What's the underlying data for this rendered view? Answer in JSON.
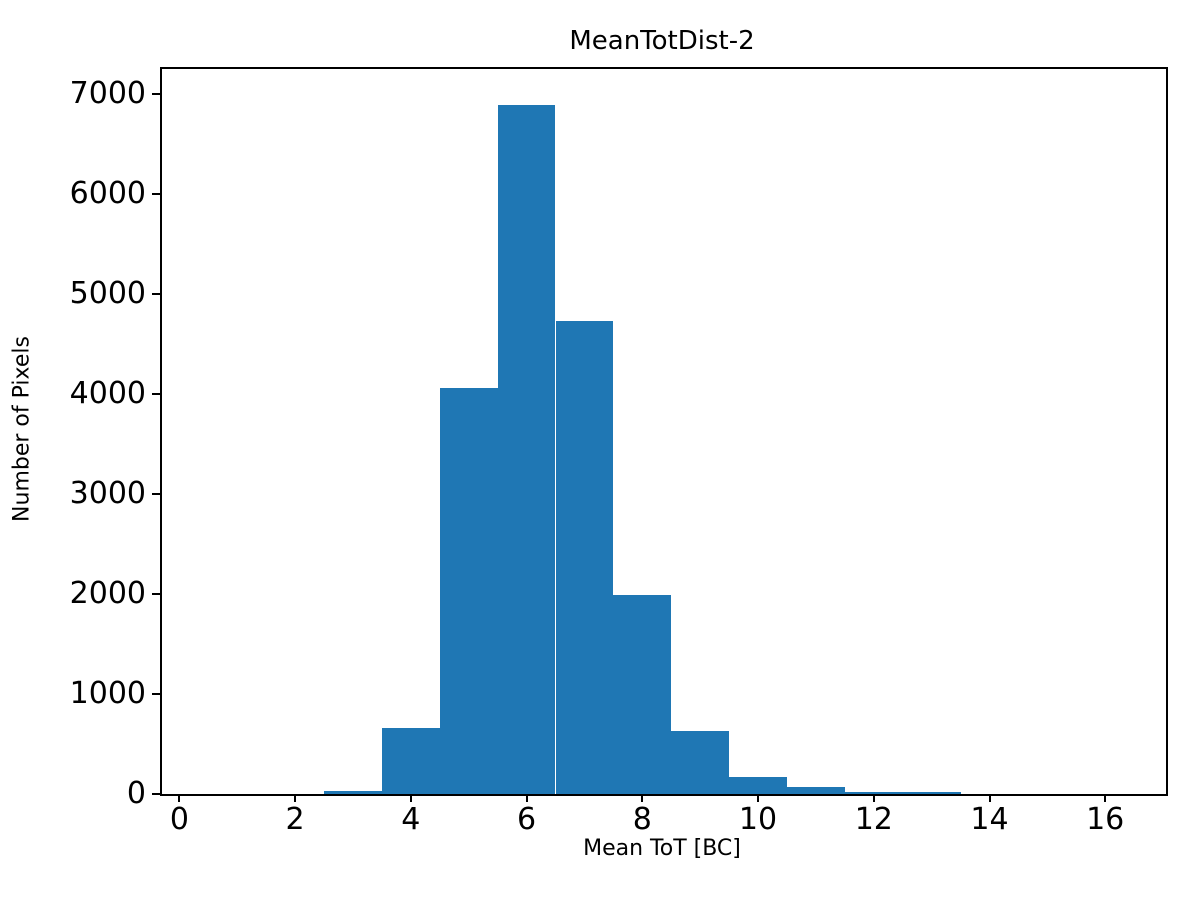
{
  "figure": {
    "background_color": "#ffffff",
    "axis_color": "#000000"
  },
  "chart_data": {
    "type": "bar",
    "subtype": "histogram",
    "title": "MeanTotDist-2",
    "xlabel": "Mean ToT [BC]",
    "ylabel": "Number of Pixels",
    "bar_color": "#1f77b4",
    "bin_edges": [
      2.5,
      3.5,
      4.5,
      5.5,
      6.5,
      7.5,
      8.5,
      9.5,
      10.5,
      11.5,
      12.5,
      13.5
    ],
    "counts": [
      35,
      660,
      4065,
      6890,
      4735,
      1990,
      630,
      175,
      70,
      25,
      20
    ],
    "xticks": [
      0,
      2,
      4,
      6,
      8,
      10,
      12,
      14,
      16
    ],
    "yticks": [
      0,
      1000,
      2000,
      3000,
      4000,
      5000,
      6000,
      7000
    ],
    "xlim": [
      -0.3,
      17.05
    ],
    "ylim": [
      0,
      7250
    ],
    "grid": false,
    "legend": false
  }
}
